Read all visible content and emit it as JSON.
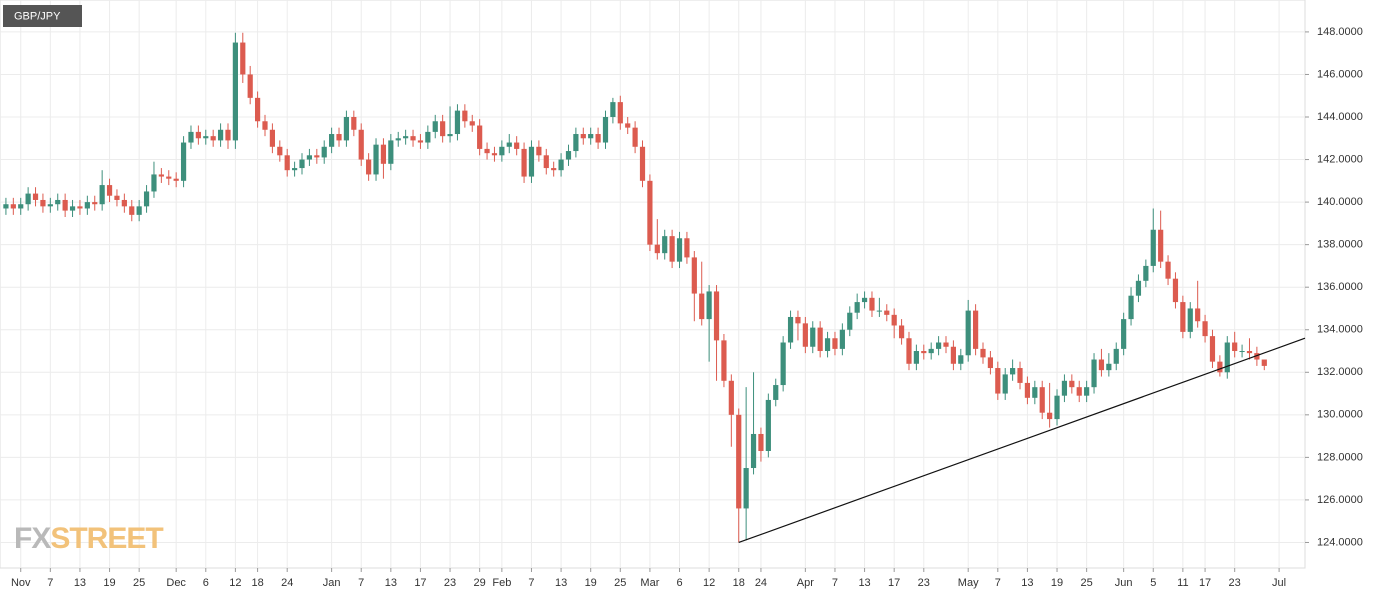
{
  "chart_data": {
    "type": "candlestick",
    "title": "GBP/JPY",
    "up_color": "#3d8f7c",
    "down_color": "#dc5b4f",
    "grid": true,
    "xlim": [
      -0.8,
      175.5
    ],
    "ylim": [
      122.8,
      149.5
    ],
    "xticks": [
      {
        "value": 2,
        "label": "Nov"
      },
      {
        "value": 6,
        "label": "7"
      },
      {
        "value": 10,
        "label": "13"
      },
      {
        "value": 14,
        "label": "19"
      },
      {
        "value": 18,
        "label": "25"
      },
      {
        "value": 23,
        "label": "Dec"
      },
      {
        "value": 27,
        "label": "6"
      },
      {
        "value": 31,
        "label": "12"
      },
      {
        "value": 34,
        "label": "18"
      },
      {
        "value": 38,
        "label": "24"
      },
      {
        "value": 44,
        "label": "Jan"
      },
      {
        "value": 48,
        "label": "7"
      },
      {
        "value": 52,
        "label": "13"
      },
      {
        "value": 56,
        "label": "17"
      },
      {
        "value": 60,
        "label": "23"
      },
      {
        "value": 64,
        "label": "29"
      },
      {
        "value": 67,
        "label": "Feb"
      },
      {
        "value": 71,
        "label": "7"
      },
      {
        "value": 75,
        "label": "13"
      },
      {
        "value": 79,
        "label": "19"
      },
      {
        "value": 83,
        "label": "25"
      },
      {
        "value": 87,
        "label": "Mar"
      },
      {
        "value": 91,
        "label": "6"
      },
      {
        "value": 95,
        "label": "12"
      },
      {
        "value": 99,
        "label": "18"
      },
      {
        "value": 102,
        "label": "24"
      },
      {
        "value": 108,
        "label": "Apr"
      },
      {
        "value": 112,
        "label": "7"
      },
      {
        "value": 116,
        "label": "13"
      },
      {
        "value": 120,
        "label": "17"
      },
      {
        "value": 124,
        "label": "23"
      },
      {
        "value": 130,
        "label": "May"
      },
      {
        "value": 134,
        "label": "7"
      },
      {
        "value": 138,
        "label": "13"
      },
      {
        "value": 142,
        "label": "19"
      },
      {
        "value": 146,
        "label": "25"
      },
      {
        "value": 151,
        "label": "Jun"
      },
      {
        "value": 155,
        "label": "5"
      },
      {
        "value": 159,
        "label": "11"
      },
      {
        "value": 162,
        "label": "17"
      },
      {
        "value": 166,
        "label": "23"
      },
      {
        "value": 172,
        "label": "Jul"
      }
    ],
    "yticks": [
      {
        "value": 124,
        "label": "124.0000"
      },
      {
        "value": 126,
        "label": "126.0000"
      },
      {
        "value": 128,
        "label": "128.0000"
      },
      {
        "value": 130,
        "label": "130.0000"
      },
      {
        "value": 132,
        "label": "132.0000"
      },
      {
        "value": 134,
        "label": "134.0000"
      },
      {
        "value": 136,
        "label": "136.0000"
      },
      {
        "value": 138,
        "label": "138.0000"
      },
      {
        "value": 140,
        "label": "140.0000"
      },
      {
        "value": 142,
        "label": "142.0000"
      },
      {
        "value": 144,
        "label": "144.0000"
      },
      {
        "value": 146,
        "label": "146.0000"
      },
      {
        "value": 148,
        "label": "148.0000"
      }
    ],
    "open": [
      139.7,
      139.9,
      139.7,
      139.9,
      140.4,
      140.1,
      139.8,
      139.9,
      140.1,
      139.6,
      139.8,
      139.7,
      140.0,
      139.9,
      140.8,
      140.3,
      140.1,
      139.8,
      139.4,
      139.8,
      140.5,
      141.3,
      141.2,
      141.1,
      141.0,
      142.8,
      143.3,
      143.0,
      143.1,
      142.9,
      143.4,
      142.9,
      147.5,
      146.0,
      144.9,
      143.8,
      143.4,
      142.6,
      142.2,
      141.5,
      141.6,
      142.0,
      142.2,
      142.1,
      142.6,
      143.2,
      142.9,
      144.0,
      143.4,
      142.0,
      141.3,
      142.7,
      141.8,
      142.9,
      143.0,
      143.1,
      142.9,
      142.8,
      143.3,
      143.8,
      143.1,
      143.2,
      144.3,
      143.8,
      143.6,
      142.5,
      142.3,
      142.2,
      142.6,
      142.8,
      142.5,
      141.2,
      142.6,
      142.2,
      141.6,
      141.5,
      142.0,
      142.4,
      143.2,
      143.0,
      143.2,
      142.8,
      144.0,
      144.7,
      143.7,
      143.5,
      142.6,
      141.0,
      138.0,
      137.6,
      138.4,
      137.2,
      138.3,
      137.4,
      135.7,
      134.5,
      135.8,
      133.5,
      131.6,
      130.0,
      125.6,
      127.5,
      129.1,
      128.3,
      130.7,
      131.4,
      133.4,
      134.6,
      134.3,
      133.2,
      134.1,
      133.0,
      133.6,
      133.1,
      134.0,
      134.8,
      135.3,
      135.5,
      134.9,
      134.9,
      134.7,
      134.2,
      133.6,
      132.4,
      133.0,
      132.9,
      133.1,
      133.4,
      133.2,
      132.4,
      132.8,
      134.9,
      133.1,
      132.7,
      132.2,
      131.0,
      131.9,
      132.2,
      131.5,
      130.8,
      131.3,
      130.1,
      129.8,
      130.9,
      131.6,
      131.3,
      130.9,
      131.3,
      132.6,
      132.1,
      132.4,
      133.1,
      134.5,
      135.6,
      136.3,
      137.0,
      138.7,
      137.2,
      136.4,
      135.3,
      133.9,
      135.0,
      134.4,
      133.7,
      132.5,
      132.0,
      133.4,
      133.0,
      133.0,
      132.9,
      132.6
    ],
    "high": [
      140.2,
      140.2,
      140.2,
      140.7,
      140.7,
      140.4,
      140.2,
      140.4,
      140.4,
      140.1,
      140.1,
      140.3,
      140.3,
      141.5,
      141.1,
      140.6,
      140.4,
      140.1,
      140.1,
      140.8,
      141.9,
      141.6,
      141.5,
      141.4,
      143.1,
      143.6,
      143.6,
      143.4,
      143.4,
      143.7,
      143.7,
      147.96,
      147.96,
      146.4,
      145.2,
      144.1,
      143.7,
      142.9,
      142.5,
      141.9,
      142.3,
      142.5,
      142.5,
      142.9,
      143.5,
      143.5,
      144.3,
      144.3,
      143.7,
      142.3,
      143.0,
      143.0,
      143.2,
      143.3,
      143.4,
      143.4,
      143.2,
      143.6,
      144.1,
      144.1,
      144.5,
      144.6,
      144.6,
      144.1,
      143.9,
      142.8,
      142.6,
      142.9,
      143.2,
      143.1,
      142.8,
      142.9,
      142.9,
      142.5,
      141.9,
      142.3,
      142.7,
      143.5,
      143.5,
      143.5,
      143.5,
      144.3,
      144.9,
      145.0,
      144.0,
      143.8,
      142.9,
      141.3,
      139.2,
      138.7,
      138.7,
      138.6,
      138.6,
      137.7,
      137.2,
      136.1,
      136.1,
      133.8,
      131.9,
      130.3,
      131.3,
      132.0,
      129.4,
      131.0,
      131.7,
      133.7,
      134.9,
      134.9,
      134.6,
      134.4,
      134.4,
      133.9,
      133.9,
      134.3,
      135.1,
      135.7,
      135.8,
      135.8,
      135.5,
      135.2,
      135.0,
      134.5,
      133.9,
      133.3,
      133.3,
      133.4,
      133.7,
      133.7,
      133.5,
      133.1,
      135.4,
      135.2,
      133.4,
      133.0,
      132.5,
      132.2,
      132.6,
      132.5,
      131.8,
      131.6,
      131.6,
      131.5,
      131.2,
      131.9,
      131.9,
      131.6,
      131.6,
      132.9,
      133.1,
      132.9,
      133.4,
      134.8,
      136.0,
      136.6,
      137.3,
      139.7,
      139.6,
      137.5,
      136.7,
      135.6,
      135.3,
      136.3,
      134.7,
      134.0,
      132.8,
      133.7,
      133.9,
      133.3,
      133.6,
      133.2,
      132.6
    ],
    "low": [
      139.4,
      139.4,
      139.4,
      139.6,
      139.8,
      139.5,
      139.5,
      139.6,
      139.3,
      139.3,
      139.4,
      139.4,
      139.6,
      139.6,
      140.0,
      139.8,
      139.5,
      139.1,
      139.1,
      139.5,
      140.2,
      140.9,
      140.8,
      140.7,
      140.7,
      142.5,
      142.7,
      142.7,
      142.6,
      142.6,
      142.5,
      142.5,
      145.6,
      144.6,
      143.5,
      143.1,
      142.3,
      141.9,
      141.2,
      141.2,
      141.3,
      141.7,
      141.8,
      141.8,
      142.3,
      142.6,
      142.6,
      143.1,
      141.7,
      141.0,
      141.0,
      141.1,
      141.5,
      142.6,
      142.7,
      142.6,
      142.5,
      142.5,
      143.0,
      142.8,
      142.8,
      142.9,
      143.5,
      143.3,
      142.2,
      142.0,
      141.9,
      141.9,
      142.3,
      142.2,
      140.9,
      140.9,
      141.9,
      141.3,
      141.2,
      141.2,
      141.7,
      142.1,
      142.7,
      142.7,
      142.5,
      142.5,
      143.7,
      143.4,
      143.2,
      142.3,
      140.7,
      137.7,
      137.3,
      137.3,
      136.9,
      136.9,
      137.1,
      134.4,
      134.2,
      132.5,
      131.6,
      131.3,
      128.5,
      124.0,
      124.1,
      127.2,
      127.8,
      128.0,
      130.4,
      131.1,
      133.1,
      133.5,
      132.9,
      132.9,
      132.7,
      132.7,
      132.8,
      132.8,
      133.7,
      134.5,
      135.0,
      134.6,
      134.6,
      134.4,
      133.6,
      133.3,
      132.1,
      132.1,
      132.6,
      132.6,
      132.8,
      132.9,
      132.1,
      132.1,
      132.5,
      132.8,
      132.4,
      131.9,
      130.7,
      130.7,
      131.6,
      131.2,
      130.5,
      130.5,
      129.8,
      129.4,
      129.5,
      130.6,
      131.0,
      130.6,
      130.6,
      131.0,
      131.8,
      131.8,
      132.1,
      132.8,
      134.2,
      135.3,
      136.0,
      136.7,
      136.9,
      136.1,
      135.0,
      133.6,
      133.6,
      134.1,
      133.4,
      132.2,
      131.8,
      131.7,
      132.7,
      132.7,
      132.6,
      132.3,
      132.1
    ],
    "close": [
      139.9,
      139.7,
      139.9,
      140.4,
      140.1,
      139.8,
      139.9,
      140.1,
      139.6,
      139.8,
      139.7,
      140.0,
      139.9,
      140.8,
      140.3,
      140.1,
      139.8,
      139.4,
      139.8,
      140.5,
      141.3,
      141.2,
      141.1,
      141.0,
      142.8,
      143.3,
      143.0,
      143.1,
      142.9,
      143.4,
      142.9,
      147.5,
      146.0,
      144.9,
      143.8,
      143.4,
      142.6,
      142.2,
      141.5,
      141.6,
      142.0,
      142.2,
      142.1,
      142.6,
      143.2,
      142.9,
      144.0,
      143.4,
      142.0,
      141.3,
      142.7,
      141.8,
      142.9,
      143.0,
      143.1,
      142.9,
      142.8,
      143.3,
      143.8,
      143.1,
      143.2,
      144.3,
      143.8,
      143.6,
      142.5,
      142.3,
      142.2,
      142.6,
      142.8,
      142.5,
      141.2,
      142.6,
      142.2,
      141.6,
      141.5,
      142.0,
      142.4,
      143.2,
      143.0,
      143.2,
      142.8,
      144.0,
      144.7,
      143.7,
      143.5,
      142.6,
      141.0,
      138.0,
      137.6,
      138.4,
      137.2,
      138.3,
      137.4,
      135.7,
      134.5,
      135.8,
      133.5,
      131.6,
      130.0,
      125.6,
      127.5,
      129.1,
      128.3,
      130.7,
      131.4,
      133.4,
      134.6,
      134.3,
      133.2,
      134.1,
      133.0,
      133.6,
      133.1,
      134.0,
      134.8,
      135.3,
      135.5,
      134.9,
      134.9,
      134.7,
      134.2,
      133.6,
      132.4,
      133.0,
      132.9,
      133.1,
      133.4,
      133.2,
      132.4,
      132.8,
      134.9,
      133.1,
      132.7,
      132.2,
      131.0,
      131.9,
      132.2,
      131.5,
      130.8,
      131.3,
      130.1,
      129.8,
      130.9,
      131.6,
      131.3,
      130.9,
      131.3,
      132.6,
      132.1,
      132.4,
      133.1,
      134.5,
      135.6,
      136.3,
      137.0,
      138.7,
      137.2,
      136.4,
      135.3,
      133.9,
      135.0,
      134.4,
      133.7,
      132.5,
      132.0,
      133.4,
      133.0,
      133.0,
      132.9,
      132.6,
      132.3
    ],
    "trendline": {
      "x": [
        99,
        175.5
      ],
      "y": [
        124.0,
        133.6
      ]
    },
    "logo": {
      "part1": "FX",
      "part2": "STREET"
    }
  }
}
